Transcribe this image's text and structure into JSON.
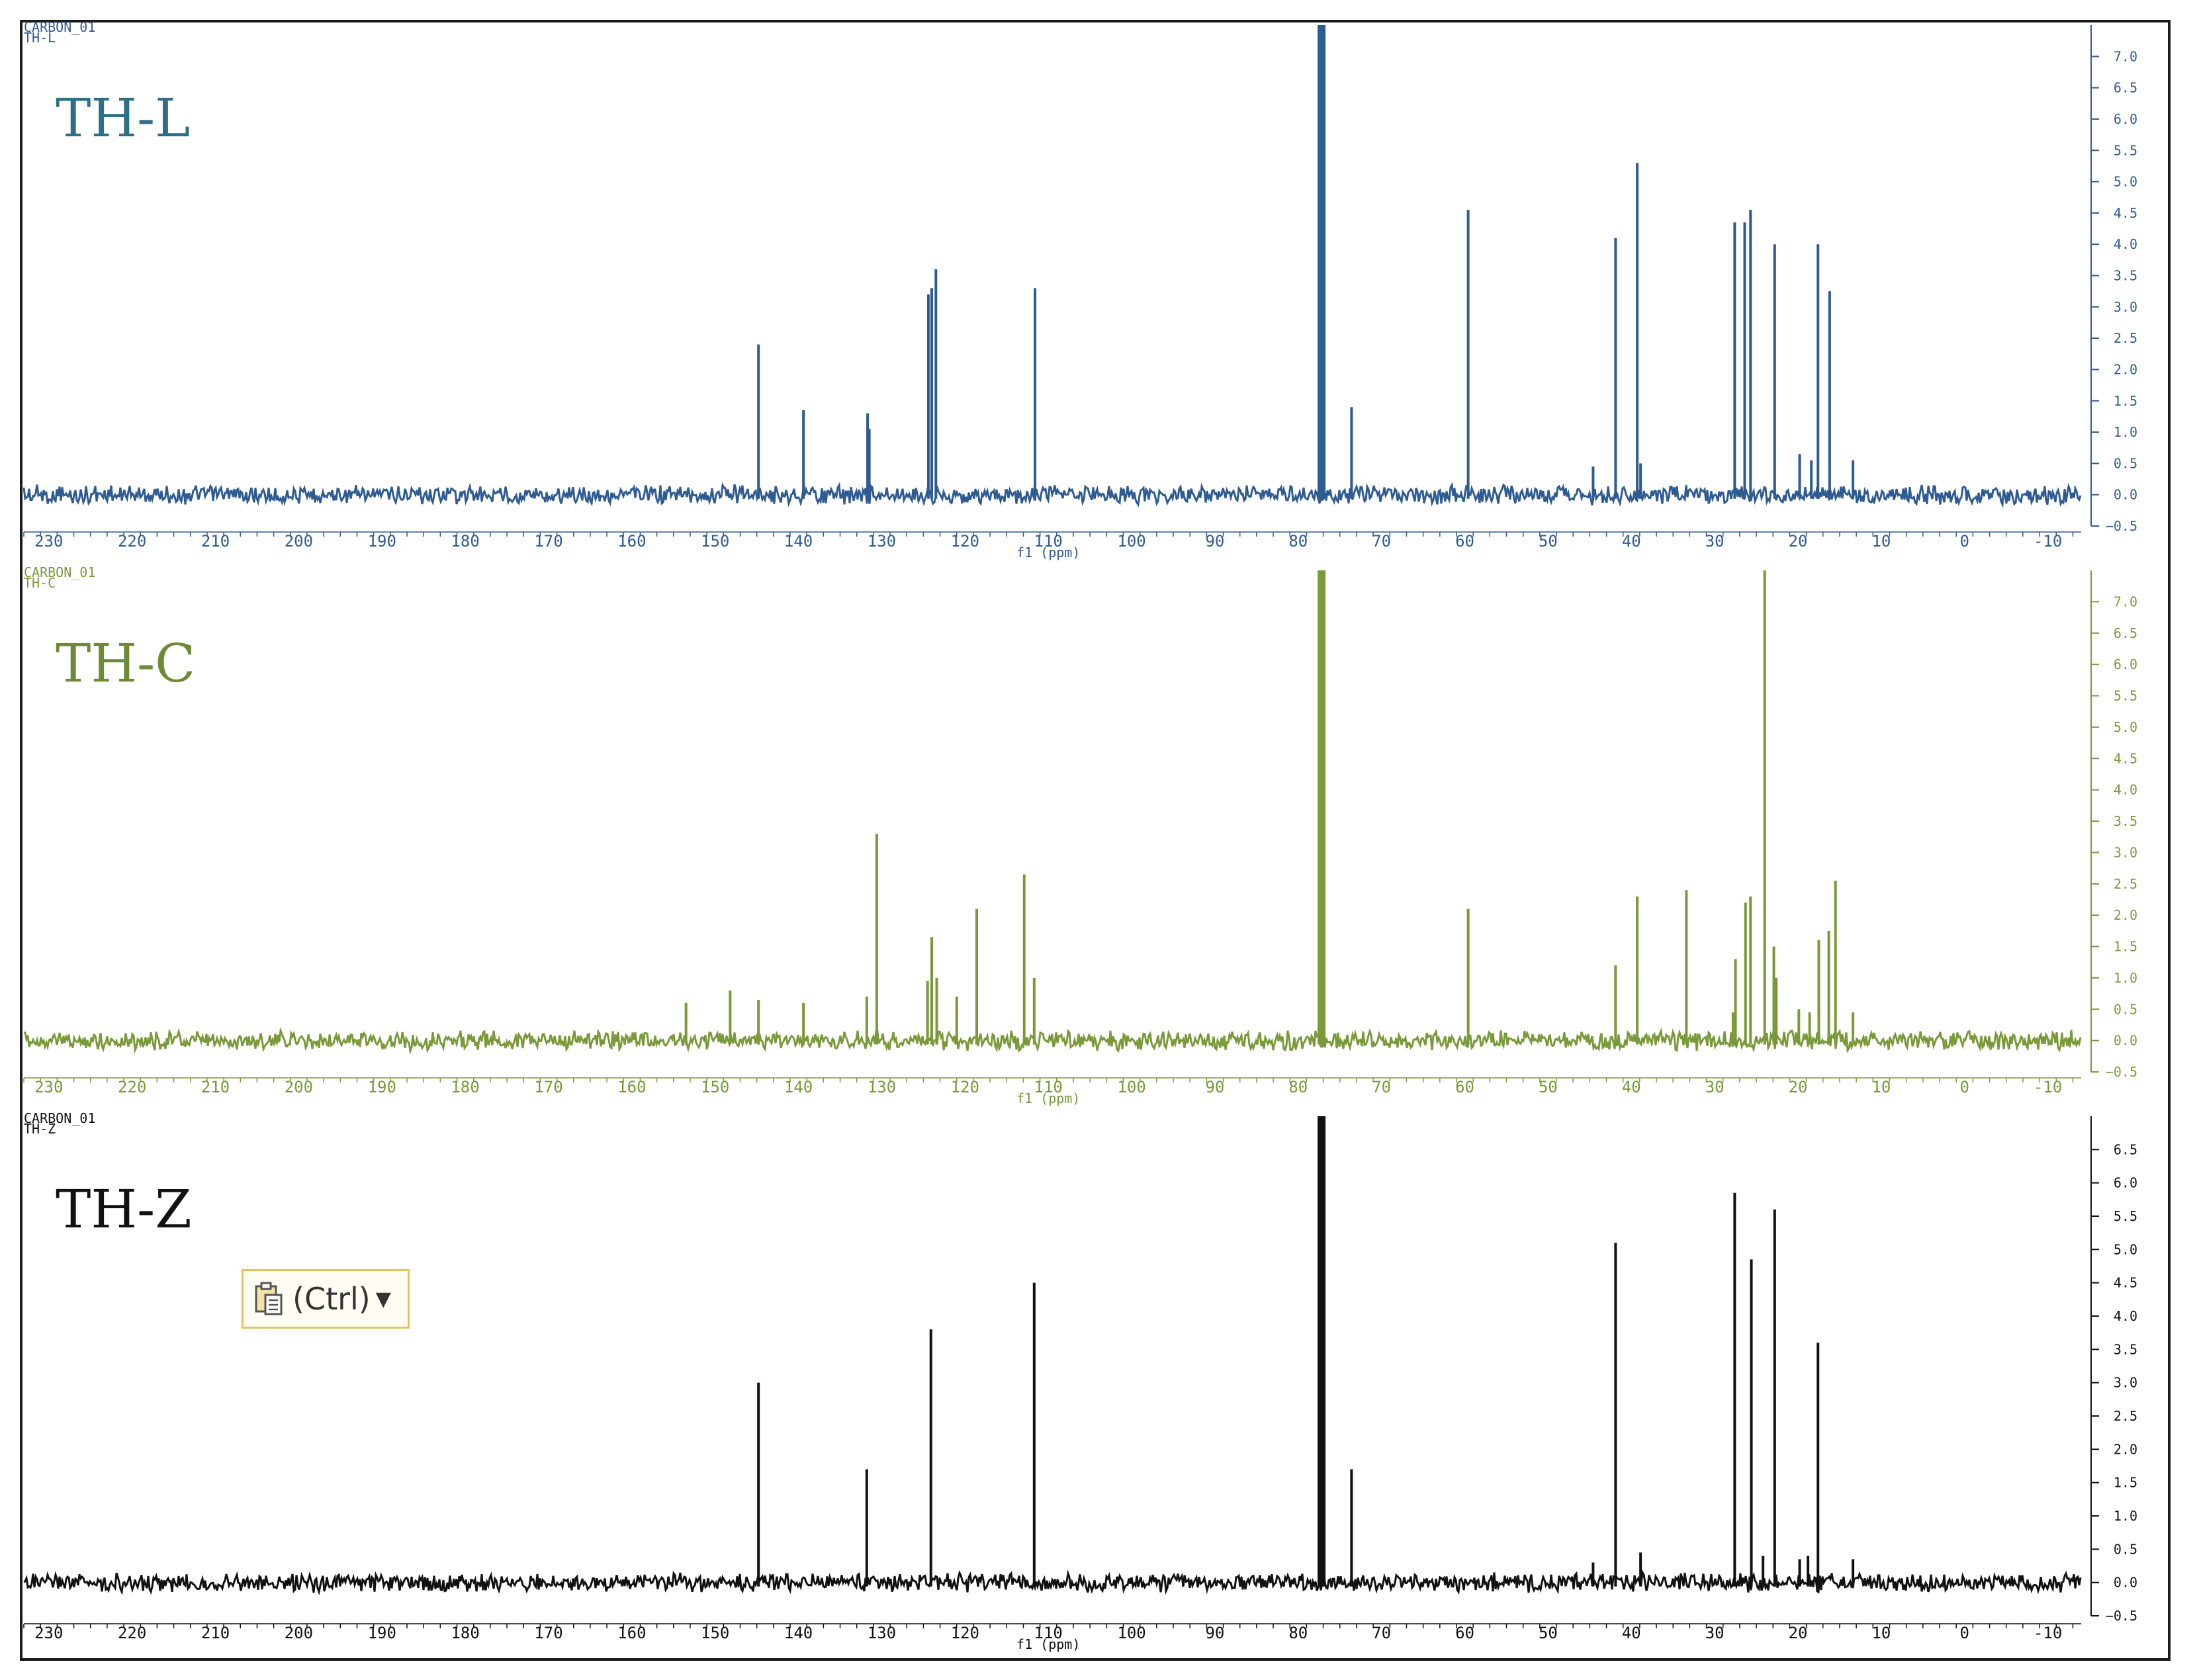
{
  "chart_data": [
    {
      "type": "line",
      "title": "TH-L",
      "header": [
        "CARBON_01",
        "TH-L"
      ],
      "xlabel": "f1 (ppm)",
      "color": "#2f5b93",
      "title_color": "#2f6e86",
      "x_ticks": [
        230,
        220,
        210,
        200,
        190,
        180,
        170,
        160,
        150,
        140,
        130,
        120,
        110,
        100,
        90,
        80,
        70,
        60,
        50,
        40,
        30,
        20,
        10,
        0,
        -10
      ],
      "xlim": [
        233,
        -14
      ],
      "ylim": [
        -0.5,
        7.5
      ],
      "y_ticks": [
        7.0,
        6.5,
        6.0,
        5.5,
        5.0,
        4.5,
        4.0,
        3.5,
        3.0,
        2.5,
        2.0,
        1.5,
        1.0,
        0.5,
        0.0,
        -0.5
      ],
      "peaks": [
        {
          "x": 144.8,
          "y": 2.4
        },
        {
          "x": 139.4,
          "y": 1.35
        },
        {
          "x": 131.7,
          "y": 1.3
        },
        {
          "x": 131.5,
          "y": 1.05
        },
        {
          "x": 124.4,
          "y": 3.2
        },
        {
          "x": 124.0,
          "y": 3.3
        },
        {
          "x": 123.5,
          "y": 3.6
        },
        {
          "x": 111.6,
          "y": 3.3
        },
        {
          "x": 77.2,
          "y": 7.5
        },
        {
          "x": 73.6,
          "y": 1.4
        },
        {
          "x": 59.6,
          "y": 4.55
        },
        {
          "x": 44.6,
          "y": 0.45
        },
        {
          "x": 41.9,
          "y": 4.1
        },
        {
          "x": 39.3,
          "y": 5.3
        },
        {
          "x": 38.9,
          "y": 0.5
        },
        {
          "x": 27.6,
          "y": 4.35
        },
        {
          "x": 26.4,
          "y": 4.35
        },
        {
          "x": 25.7,
          "y": 4.55
        },
        {
          "x": 22.8,
          "y": 4.0
        },
        {
          "x": 19.8,
          "y": 0.65
        },
        {
          "x": 18.4,
          "y": 0.55
        },
        {
          "x": 17.6,
          "y": 4.0
        },
        {
          "x": 16.2,
          "y": 3.25
        },
        {
          "x": 13.4,
          "y": 0.55
        }
      ]
    },
    {
      "type": "line",
      "title": "TH-C",
      "header": [
        "CARBON_01",
        "TH-C"
      ],
      "xlabel": "f1 (ppm)",
      "color": "#7a9a3a",
      "title_color": "#6f8a36",
      "x_ticks": [
        230,
        220,
        210,
        200,
        190,
        180,
        170,
        160,
        150,
        140,
        130,
        120,
        110,
        100,
        90,
        80,
        70,
        60,
        50,
        40,
        30,
        20,
        10,
        0,
        -10
      ],
      "xlim": [
        233,
        -14
      ],
      "ylim": [
        -0.5,
        7.5
      ],
      "y_ticks": [
        7.0,
        6.5,
        6.0,
        5.5,
        5.0,
        4.5,
        4.0,
        3.5,
        3.0,
        2.5,
        2.0,
        1.5,
        1.0,
        0.5,
        0.0,
        -0.5
      ],
      "peaks": [
        {
          "x": 153.5,
          "y": 0.6
        },
        {
          "x": 148.2,
          "y": 0.8
        },
        {
          "x": 144.8,
          "y": 0.65
        },
        {
          "x": 139.4,
          "y": 0.6
        },
        {
          "x": 131.8,
          "y": 0.7
        },
        {
          "x": 130.6,
          "y": 3.3
        },
        {
          "x": 124.5,
          "y": 0.95
        },
        {
          "x": 124.0,
          "y": 1.65
        },
        {
          "x": 123.4,
          "y": 1.0
        },
        {
          "x": 121.0,
          "y": 0.7
        },
        {
          "x": 118.6,
          "y": 2.1
        },
        {
          "x": 112.9,
          "y": 2.65
        },
        {
          "x": 111.7,
          "y": 1.0
        },
        {
          "x": 77.2,
          "y": 7.5
        },
        {
          "x": 59.6,
          "y": 2.1
        },
        {
          "x": 41.9,
          "y": 1.2
        },
        {
          "x": 39.3,
          "y": 2.3
        },
        {
          "x": 33.4,
          "y": 2.4
        },
        {
          "x": 27.8,
          "y": 0.45
        },
        {
          "x": 27.5,
          "y": 1.3
        },
        {
          "x": 26.3,
          "y": 2.2
        },
        {
          "x": 25.7,
          "y": 2.3
        },
        {
          "x": 24.0,
          "y": 7.5
        },
        {
          "x": 22.9,
          "y": 1.5
        },
        {
          "x": 22.6,
          "y": 1.0
        },
        {
          "x": 19.9,
          "y": 0.5
        },
        {
          "x": 18.6,
          "y": 0.45
        },
        {
          "x": 17.5,
          "y": 1.6
        },
        {
          "x": 16.3,
          "y": 1.75
        },
        {
          "x": 15.5,
          "y": 2.55
        },
        {
          "x": 13.4,
          "y": 0.45
        }
      ]
    },
    {
      "type": "line",
      "title": "TH-Z",
      "header": [
        "CARBON_01",
        "TH-Z"
      ],
      "xlabel": "f1 (ppm)",
      "color": "#111111",
      "title_color": "#111111",
      "x_ticks": [
        230,
        220,
        210,
        200,
        190,
        180,
        170,
        160,
        150,
        140,
        130,
        120,
        110,
        100,
        90,
        80,
        70,
        60,
        50,
        40,
        30,
        20,
        10,
        0,
        -10
      ],
      "xlim": [
        233,
        -14
      ],
      "ylim": [
        -0.5,
        7.0
      ],
      "y_ticks": [
        6.5,
        6.0,
        5.5,
        5.0,
        4.5,
        4.0,
        3.5,
        3.0,
        2.5,
        2.0,
        1.5,
        1.0,
        0.5,
        0.0,
        -0.5
      ],
      "peaks": [
        {
          "x": 144.8,
          "y": 3.0
        },
        {
          "x": 131.8,
          "y": 1.7
        },
        {
          "x": 124.1,
          "y": 3.8
        },
        {
          "x": 111.7,
          "y": 4.5
        },
        {
          "x": 77.2,
          "y": 7.0
        },
        {
          "x": 73.6,
          "y": 1.7
        },
        {
          "x": 44.6,
          "y": 0.3
        },
        {
          "x": 41.9,
          "y": 5.1
        },
        {
          "x": 38.9,
          "y": 0.45
        },
        {
          "x": 27.6,
          "y": 5.85
        },
        {
          "x": 25.6,
          "y": 4.85
        },
        {
          "x": 24.2,
          "y": 0.4
        },
        {
          "x": 22.8,
          "y": 5.6
        },
        {
          "x": 19.8,
          "y": 0.35
        },
        {
          "x": 18.8,
          "y": 0.4
        },
        {
          "x": 17.6,
          "y": 3.6
        },
        {
          "x": 13.4,
          "y": 0.35
        }
      ]
    }
  ],
  "paste_options": {
    "label": "(Ctrl)",
    "icon": "clipboard-icon",
    "caret_icon": "dropdown-caret-icon"
  }
}
